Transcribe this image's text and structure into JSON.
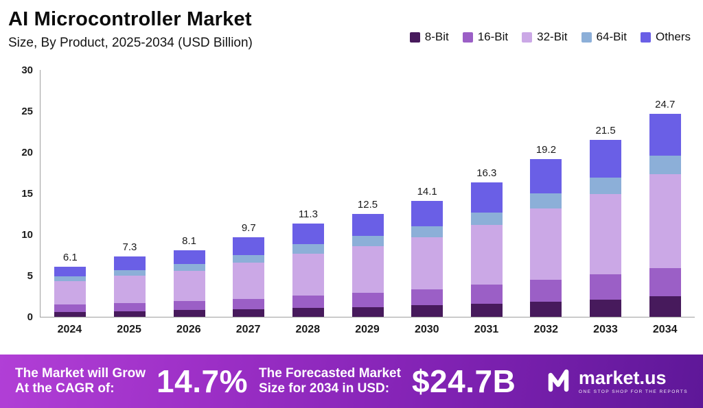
{
  "header": {
    "title": "AI Microcontroller Market",
    "subtitle": "Size, By Product, 2025-2034 (USD Billion)"
  },
  "chart_data": {
    "type": "bar",
    "stacked": true,
    "title": "AI Microcontroller Market Size, By Product, 2025-2034 (USD Billion)",
    "categories": [
      "2024",
      "2025",
      "2026",
      "2027",
      "2028",
      "2029",
      "2030",
      "2031",
      "2032",
      "2033",
      "2034"
    ],
    "series": [
      {
        "name": "8-Bit",
        "color": "#471a5c",
        "values": [
          0.6,
          0.7,
          0.8,
          0.9,
          1.1,
          1.2,
          1.4,
          1.6,
          1.8,
          2.1,
          2.5
        ]
      },
      {
        "name": "16-Bit",
        "color": "#9b5fc6",
        "values": [
          0.9,
          1.0,
          1.1,
          1.3,
          1.5,
          1.7,
          1.9,
          2.3,
          2.7,
          3.1,
          3.4
        ]
      },
      {
        "name": "32-Bit",
        "color": "#cba8e6",
        "values": [
          2.8,
          3.3,
          3.7,
          4.4,
          5.1,
          5.7,
          6.4,
          7.3,
          8.7,
          9.7,
          11.4
        ]
      },
      {
        "name": "64-Bit",
        "color": "#8cafd8",
        "values": [
          0.6,
          0.7,
          0.8,
          0.9,
          1.1,
          1.2,
          1.3,
          1.5,
          1.8,
          2.0,
          2.3
        ]
      },
      {
        "name": "Others",
        "color": "#6a5fe6",
        "values": [
          1.2,
          1.6,
          1.7,
          2.2,
          2.5,
          2.7,
          3.1,
          3.6,
          4.2,
          4.6,
          5.1
        ]
      }
    ],
    "totals": [
      6.1,
      7.3,
      8.1,
      9.7,
      11.3,
      12.5,
      14.1,
      16.3,
      19.2,
      21.5,
      24.7
    ],
    "xlabel": "",
    "ylabel": "",
    "ylim": [
      0,
      30
    ],
    "yticks": [
      0,
      5,
      10,
      15,
      20,
      25,
      30
    ],
    "grid": false,
    "legend_position": "top-right"
  },
  "banner": {
    "cagr_label": "The Market will Grow\nAt the CAGR of:",
    "cagr_value": "14.7%",
    "forecast_label": "The Forecasted Market\nSize for 2034 in USD:",
    "forecast_value": "$24.7B",
    "logo_text": "market.us",
    "logo_tagline": "ONE STOP SHOP FOR THE REPORTS"
  }
}
